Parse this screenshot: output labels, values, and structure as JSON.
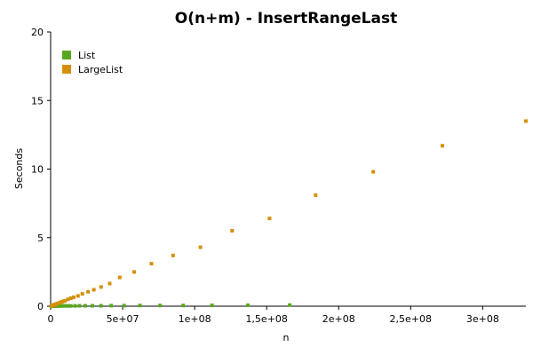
{
  "chart_data": {
    "type": "scatter",
    "title": "O(n+m) - InsertRangeLast",
    "xlabel": "n",
    "ylabel": "Seconds",
    "xlim": [
      0,
      330000000
    ],
    "ylim": [
      0,
      20
    ],
    "grid": false,
    "legend_position": "top-left",
    "x_ticks": [
      {
        "value": 0,
        "label": "0"
      },
      {
        "value": 50000000,
        "label": "5e+07"
      },
      {
        "value": 100000000,
        "label": "1e+08"
      },
      {
        "value": 150000000,
        "label": "1,5e+08"
      },
      {
        "value": 200000000,
        "label": "2e+08"
      },
      {
        "value": 250000000,
        "label": "2,5e+08"
      },
      {
        "value": 300000000,
        "label": "3e+08"
      }
    ],
    "y_ticks": [
      {
        "value": 0,
        "label": "0"
      },
      {
        "value": 5,
        "label": "5"
      },
      {
        "value": 10,
        "label": "10"
      },
      {
        "value": 15,
        "label": "15"
      },
      {
        "value": 20,
        "label": "20"
      }
    ],
    "series": [
      {
        "name": "List",
        "color": "#58A81F",
        "points": [
          [
            500000,
            0.01
          ],
          [
            1000000,
            0.01
          ],
          [
            1500000,
            0.01
          ],
          [
            2000000,
            0.01
          ],
          [
            2500000,
            0.01
          ],
          [
            3000000,
            0.01
          ],
          [
            3500000,
            0.01
          ],
          [
            4000000,
            0.01
          ],
          [
            5000000,
            0.01
          ],
          [
            6000000,
            0.02
          ],
          [
            7000000,
            0.02
          ],
          [
            8000000,
            0.02
          ],
          [
            10000000,
            0.02
          ],
          [
            12000000,
            0.02
          ],
          [
            14000000,
            0.02
          ],
          [
            17000000,
            0.02
          ],
          [
            20000000,
            0.03
          ],
          [
            24000000,
            0.03
          ],
          [
            29000000,
            0.03
          ],
          [
            35000000,
            0.03
          ],
          [
            42000000,
            0.04
          ],
          [
            51000000,
            0.04
          ],
          [
            62000000,
            0.05
          ],
          [
            76000000,
            0.05
          ],
          [
            92000000,
            0.05
          ],
          [
            112000000,
            0.06
          ],
          [
            137000000,
            0.07
          ],
          [
            166000000,
            0.08
          ]
        ]
      },
      {
        "name": "LargeList",
        "color": "#D4900C",
        "points": [
          [
            500000,
            0.02
          ],
          [
            1000000,
            0.04
          ],
          [
            1500000,
            0.06
          ],
          [
            2000000,
            0.08
          ],
          [
            2500000,
            0.1
          ],
          [
            3000000,
            0.12
          ],
          [
            3500000,
            0.14
          ],
          [
            4000000,
            0.16
          ],
          [
            5000000,
            0.2
          ],
          [
            6000000,
            0.24
          ],
          [
            7000000,
            0.28
          ],
          [
            8000000,
            0.32
          ],
          [
            9000000,
            0.36
          ],
          [
            10000000,
            0.4
          ],
          [
            12000000,
            0.5
          ],
          [
            14000000,
            0.58
          ],
          [
            16000000,
            0.65
          ],
          [
            19000000,
            0.75
          ],
          [
            22000000,
            0.9
          ],
          [
            26000000,
            1.05
          ],
          [
            30000000,
            1.2
          ],
          [
            35000000,
            1.4
          ],
          [
            41000000,
            1.65
          ],
          [
            48000000,
            2.1
          ],
          [
            58000000,
            2.5
          ],
          [
            70000000,
            3.1
          ],
          [
            85000000,
            3.7
          ],
          [
            104000000,
            4.3
          ],
          [
            126000000,
            5.5
          ],
          [
            152000000,
            6.4
          ],
          [
            184000000,
            8.1
          ],
          [
            224000000,
            9.8
          ],
          [
            272000000,
            11.7
          ],
          [
            330000000,
            13.5
          ]
        ]
      }
    ]
  }
}
